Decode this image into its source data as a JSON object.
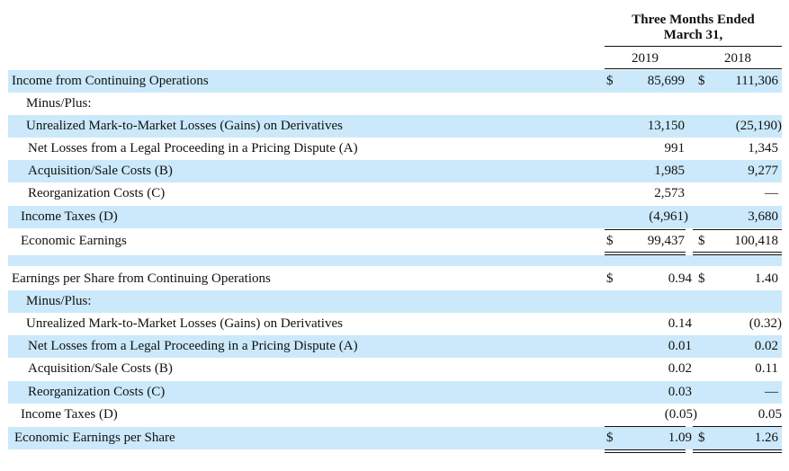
{
  "header": {
    "title_line1": "Three Months Ended",
    "title_line2": "March 31,",
    "year1": "2019",
    "year2": "2018"
  },
  "section1": {
    "rows": [
      {
        "label": "Income from Continuing Operations",
        "dollar1": "$",
        "v2019": "85,699",
        "dollar2": "$",
        "v2018": "111,306"
      },
      {
        "label": "Minus/Plus:",
        "v2019": "",
        "v2018": ""
      },
      {
        "label": "Unrealized Mark-to-Market Losses (Gains) on Derivatives",
        "v2019": "13,150",
        "v2018": "(25,190)"
      },
      {
        "label": "Net Losses from a Legal Proceeding in a Pricing Dispute (A)",
        "v2019": "991",
        "v2018": "1,345"
      },
      {
        "label": "Acquisition/Sale Costs (B)",
        "v2019": "1,985",
        "v2018": "9,277"
      },
      {
        "label": "Reorganization Costs (C)",
        "v2019": "2,573",
        "v2018": "—"
      },
      {
        "label": "Income Taxes (D)",
        "v2019": "(4,961)",
        "v2018": "3,680"
      },
      {
        "label": "Economic Earnings",
        "dollar1": "$",
        "v2019": "99,437",
        "dollar2": "$",
        "v2018": "100,418"
      }
    ]
  },
  "section2": {
    "rows": [
      {
        "label": "Earnings per Share from Continuing Operations",
        "dollar1": "$",
        "v2019": "0.94",
        "dollar2": "$",
        "v2018": "1.40"
      },
      {
        "label": "Minus/Plus:",
        "v2019": "",
        "v2018": ""
      },
      {
        "label": "Unrealized Mark-to-Market Losses (Gains) on Derivatives",
        "v2019": "0.14",
        "v2018": "(0.32)"
      },
      {
        "label": "Net Losses from a Legal Proceeding in a Pricing Dispute (A)",
        "v2019": "0.01",
        "v2018": "0.02"
      },
      {
        "label": "Acquisition/Sale Costs (B)",
        "v2019": "0.02",
        "v2018": "0.11"
      },
      {
        "label": "Reorganization Costs (C)",
        "v2019": "0.03",
        "v2018": "—"
      },
      {
        "label": "Income Taxes (D)",
        "v2019": "(0.05)",
        "v2018": "0.05"
      },
      {
        "label": "Economic Earnings per Share",
        "dollar1": "$",
        "v2019": "1.09",
        "dollar2": "$",
        "v2018": "1.26"
      }
    ]
  },
  "colors": {
    "row_shade": "#cbe9fb",
    "text": "#111111"
  }
}
